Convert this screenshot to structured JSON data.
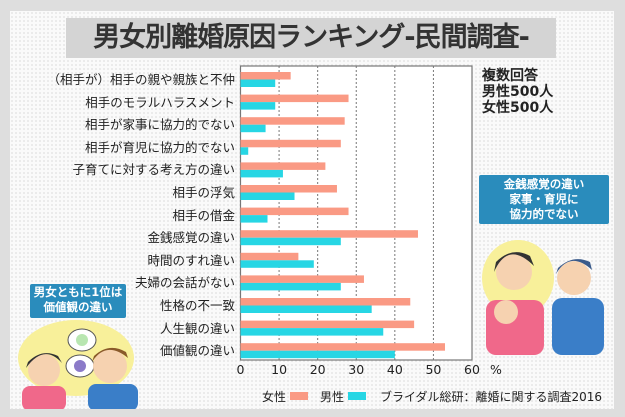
{
  "title": "男女別離婚原因ランキング-民間調査-",
  "note": [
    "複数回答",
    "男性500人",
    "女性500人"
  ],
  "callout_right": [
    "金銭感覚の違い",
    "家事・育児に",
    "協力的でない"
  ],
  "callout_left": [
    "男女ともに1位は",
    "価値観の違い"
  ],
  "source": "ブライダル総研：離婚に関する調査2016",
  "colors": {
    "female": "#fa9a84",
    "male": "#27d6e4",
    "callout": "#2a8cbc"
  },
  "chart_data": {
    "type": "bar",
    "orientation": "horizontal",
    "categories": [
      "（相手が）相手の親や親族と不仲",
      "相手のモラルハラスメント",
      "相手が家事に協力的でない",
      "相手が育児に協力的でない",
      "子育てに対する考え方の違い",
      "相手の浮気",
      "相手の借金",
      "金銭感覚の違い",
      "時間のすれ違い",
      "夫婦の会話がない",
      "性格の不一致",
      "人生観の違い",
      "価値観の違い"
    ],
    "series": [
      {
        "name": "女性",
        "values": [
          13,
          28,
          27,
          26,
          22,
          25,
          28,
          46,
          15,
          32,
          44,
          45,
          53
        ]
      },
      {
        "name": "男性",
        "values": [
          9,
          9,
          6.5,
          2,
          11,
          14,
          7,
          26,
          19,
          26,
          34,
          37,
          40
        ]
      }
    ],
    "xlim": [
      0,
      60
    ],
    "xticks": [
      "0",
      "10",
      "20",
      "30",
      "40",
      "50",
      "60"
    ],
    "xunit": "%",
    "grid": true,
    "legend": "bottom"
  }
}
